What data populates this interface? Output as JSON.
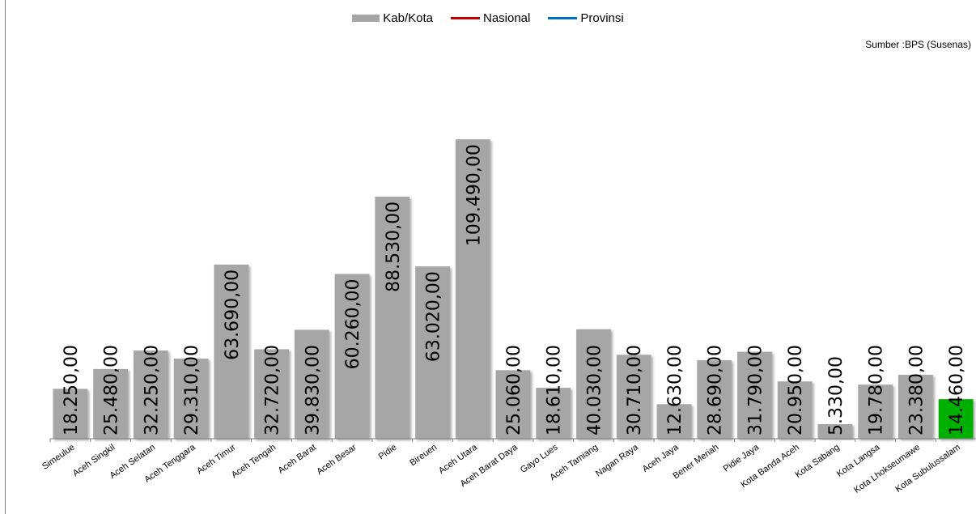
{
  "legend": {
    "items": [
      {
        "label": "Kab/Kota",
        "color": "#a6a6a6",
        "kind": "bar"
      },
      {
        "label": "Nasional",
        "color": "#c00000",
        "kind": "line"
      },
      {
        "label": "Provinsi",
        "color": "#0070c0",
        "kind": "line"
      }
    ]
  },
  "source": "Sumber :BPS (Susenas)",
  "chart_data": {
    "type": "bar",
    "categories": [
      "Simeulue",
      "Aceh Singkil",
      "Aceh Selatan",
      "Aceh Tenggara",
      "Aceh Timur",
      "Aceh Tengah",
      "Aceh Barat",
      "Aceh Besar",
      "Pidie",
      "Bireuen",
      "Aceh Utara",
      "Aceh Barat Daya",
      "Gayo Lues",
      "Aceh Tamiang",
      "Nagan Raya",
      "Aceh Jaya",
      "Bener Meriah",
      "Pidie Jaya",
      "Kota Banda Aceh",
      "Kota Sabang",
      "Kota Langsa",
      "Kota Lhokseumawe",
      "Kota Subulussalam"
    ],
    "series": [
      {
        "name": "Kab/Kota",
        "values": [
          18250,
          25480,
          32250,
          29310,
          63690,
          32720,
          39830,
          60260,
          88530,
          63020,
          109490,
          25060,
          18610,
          40030,
          30710,
          12630,
          28690,
          31790,
          20950,
          5330,
          19780,
          23380,
          14460
        ],
        "labels": [
          "18.250,00",
          "25.480,00",
          "32.250,00",
          "29.310,00",
          "63.690,00",
          "32.720,00",
          "39.830,00",
          "60.260,00",
          "88.530,00",
          "63.020,00",
          "109.490,00",
          "25.060,00",
          "18.610,00",
          "40.030,00",
          "30.710,00",
          "12.630,00",
          "28.690,00",
          "31.790,00",
          "20.950,00",
          "5.330,00",
          "19.780,00",
          "23.380,00",
          "14.460,00"
        ]
      }
    ],
    "bar_color": "#a6a6a6",
    "highlight": {
      "category": "Kota Subulussalam",
      "color": "#00b000"
    },
    "ylim": [
      0,
      119000
    ]
  }
}
